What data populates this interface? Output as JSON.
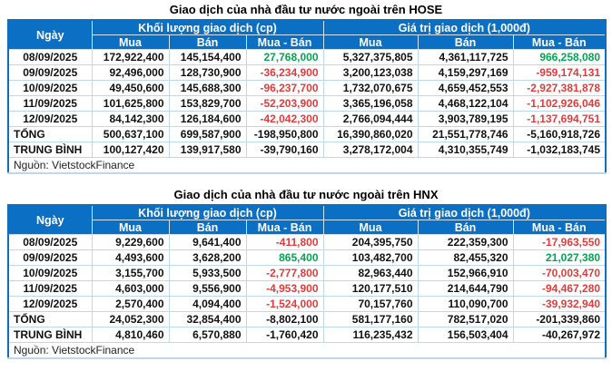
{
  "colors": {
    "header_bg": "#0b6fc4",
    "grid_line": "#bdd7ee",
    "positive": "#00a651",
    "negative": "#e03c3c"
  },
  "tables": [
    {
      "id": "hose",
      "title": "Giao dịch của nhà đầu tư nước ngoài trên HOSE",
      "headers": {
        "date": "Ngày",
        "volume_group": "Khối lượng giao dịch (cp)",
        "value_group": "Giá trị giao dịch (1,000đ)",
        "buy": "Mua",
        "sell": "Bán",
        "net": "Mua - Bán"
      },
      "rows": [
        {
          "date": "08/09/2025",
          "vol_buy": "172,922,400",
          "vol_sell": "145,154,400",
          "vol_net": "27,768,000",
          "val_buy": "5,327,375,805",
          "val_sell": "4,361,117,725",
          "val_net": "966,258,080"
        },
        {
          "date": "09/09/2025",
          "vol_buy": "92,496,000",
          "vol_sell": "128,730,900",
          "vol_net": "-36,234,900",
          "val_buy": "3,200,123,038",
          "val_sell": "4,159,297,169",
          "val_net": "-959,174,131"
        },
        {
          "date": "10/09/2025",
          "vol_buy": "49,450,600",
          "vol_sell": "145,688,300",
          "vol_net": "-96,237,700",
          "val_buy": "1,732,070,675",
          "val_sell": "4,659,452,553",
          "val_net": "-2,927,381,878"
        },
        {
          "date": "11/09/2025",
          "vol_buy": "101,625,800",
          "vol_sell": "153,829,700",
          "vol_net": "-52,203,900",
          "val_buy": "3,365,196,058",
          "val_sell": "4,468,122,104",
          "val_net": "-1,102,926,046"
        },
        {
          "date": "12/09/2025",
          "vol_buy": "84,142,300",
          "vol_sell": "126,184,600",
          "vol_net": "-42,042,300",
          "val_buy": "2,766,094,444",
          "val_sell": "3,903,789,195",
          "val_net": "-1,137,694,751"
        }
      ],
      "total": {
        "label": "TỔNG",
        "vol_buy": "500,637,100",
        "vol_sell": "699,587,900",
        "vol_net": "-198,950,800",
        "val_buy": "16,390,860,020",
        "val_sell": "21,551,778,746",
        "val_net": "-5,160,918,726"
      },
      "average": {
        "label": "TRUNG BÌNH",
        "vol_buy": "100,127,420",
        "vol_sell": "139,917,580",
        "vol_net": "-39,790,160",
        "val_buy": "3,278,172,004",
        "val_sell": "4,310,355,749",
        "val_net": "-1,032,183,745"
      },
      "source": "Nguồn: VietstockFinance"
    },
    {
      "id": "hnx",
      "title": "Giao dịch của nhà đầu tư nước ngoài trên HNX",
      "headers": {
        "date": "Ngày",
        "volume_group": "Khối lượng giao dịch (cp)",
        "value_group": "Giá trị giao dịch (1,000đ)",
        "buy": "Mua",
        "sell": "Bán",
        "net": "Mua - Bán"
      },
      "rows": [
        {
          "date": "08/09/2025",
          "vol_buy": "9,229,600",
          "vol_sell": "9,641,400",
          "vol_net": "-411,800",
          "val_buy": "204,395,750",
          "val_sell": "222,359,300",
          "val_net": "-17,963,550"
        },
        {
          "date": "09/09/2025",
          "vol_buy": "4,493,600",
          "vol_sell": "3,628,200",
          "vol_net": "865,400",
          "val_buy": "103,482,700",
          "val_sell": "82,455,320",
          "val_net": "21,027,380"
        },
        {
          "date": "10/09/2025",
          "vol_buy": "3,155,700",
          "vol_sell": "5,933,500",
          "vol_net": "-2,777,800",
          "val_buy": "82,963,440",
          "val_sell": "152,966,910",
          "val_net": "-70,003,470"
        },
        {
          "date": "11/09/2025",
          "vol_buy": "4,603,000",
          "vol_sell": "9,556,900",
          "vol_net": "-4,953,900",
          "val_buy": "120,177,510",
          "val_sell": "214,644,790",
          "val_net": "-94,467,280"
        },
        {
          "date": "12/09/2025",
          "vol_buy": "2,570,400",
          "vol_sell": "4,094,400",
          "vol_net": "-1,524,000",
          "val_buy": "70,157,760",
          "val_sell": "110,090,700",
          "val_net": "-39,932,940"
        }
      ],
      "total": {
        "label": "TỔNG",
        "vol_buy": "24,052,300",
        "vol_sell": "32,854,400",
        "vol_net": "-8,802,100",
        "val_buy": "581,177,160",
        "val_sell": "782,517,020",
        "val_net": "-201,339,860"
      },
      "average": {
        "label": "TRUNG BÌNH",
        "vol_buy": "4,810,460",
        "vol_sell": "6,570,880",
        "vol_net": "-1,760,420",
        "val_buy": "116,235,432",
        "val_sell": "156,503,404",
        "val_net": "-40,267,972"
      },
      "source": "Nguồn: VietstockFinance"
    }
  ]
}
